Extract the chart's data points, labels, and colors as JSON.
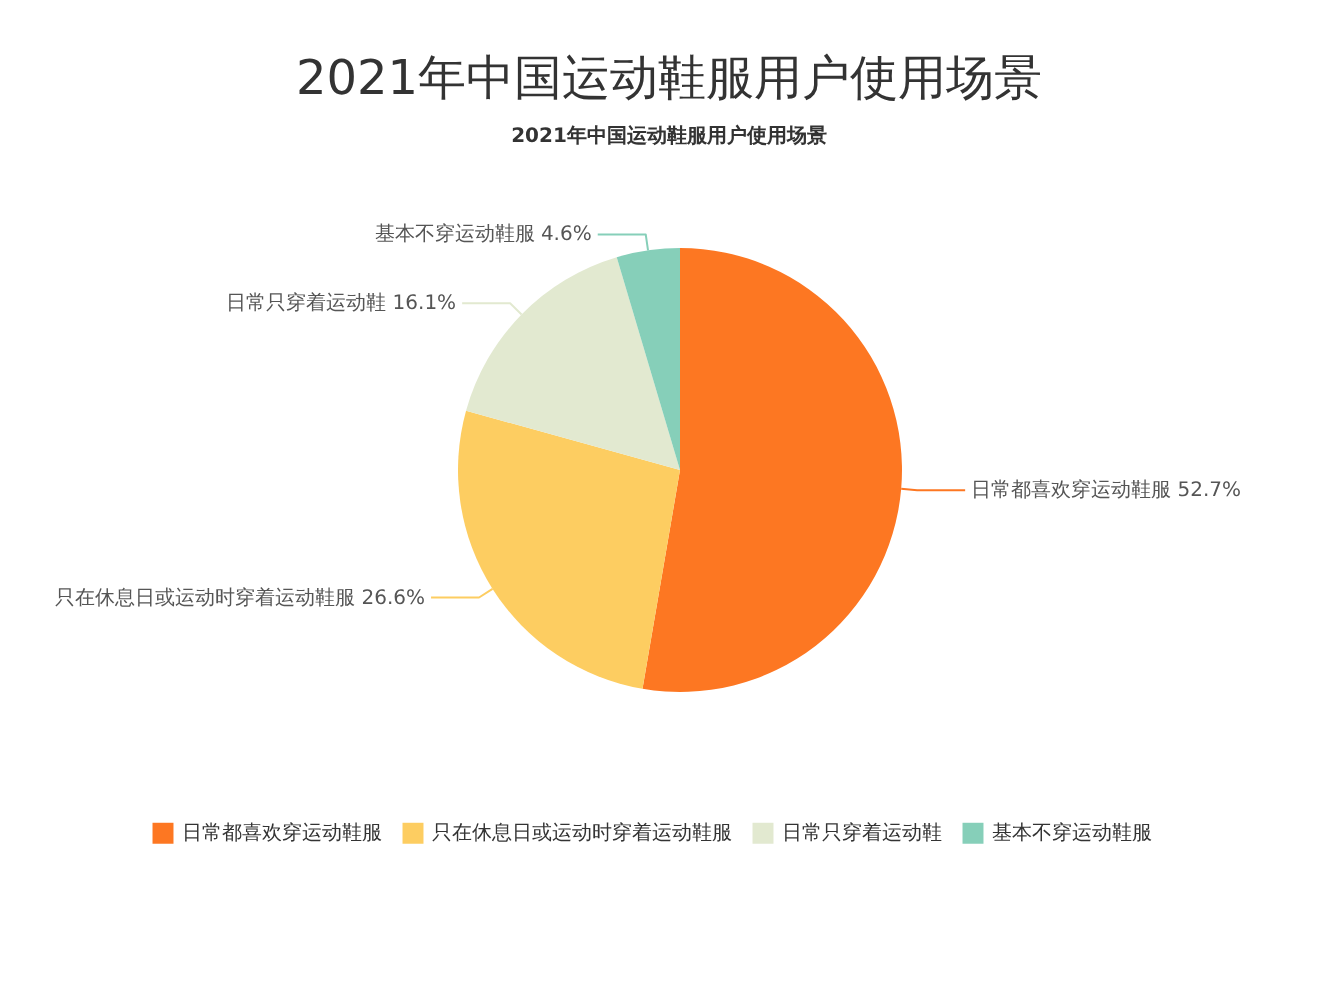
{
  "chart_data": {
    "type": "pie",
    "title": "2021年中国运动鞋服用户使用场景",
    "subtitle": "2021年中国运动鞋服用户使用场景",
    "categories": [
      "日常都喜欢穿运动鞋服",
      "只在休息日或运动时穿着运动鞋服",
      "日常只穿着运动鞋",
      "基本不穿运动鞋服"
    ],
    "values": [
      52.7,
      26.6,
      16.1,
      4.6
    ],
    "colors": [
      "#fd7722",
      "#fdcd61",
      "#e2e9d0",
      "#86cfb9"
    ],
    "value_labels": [
      "52.7%",
      "26.6%",
      "16.1%",
      "4.6%"
    ],
    "legend": "bottom"
  }
}
